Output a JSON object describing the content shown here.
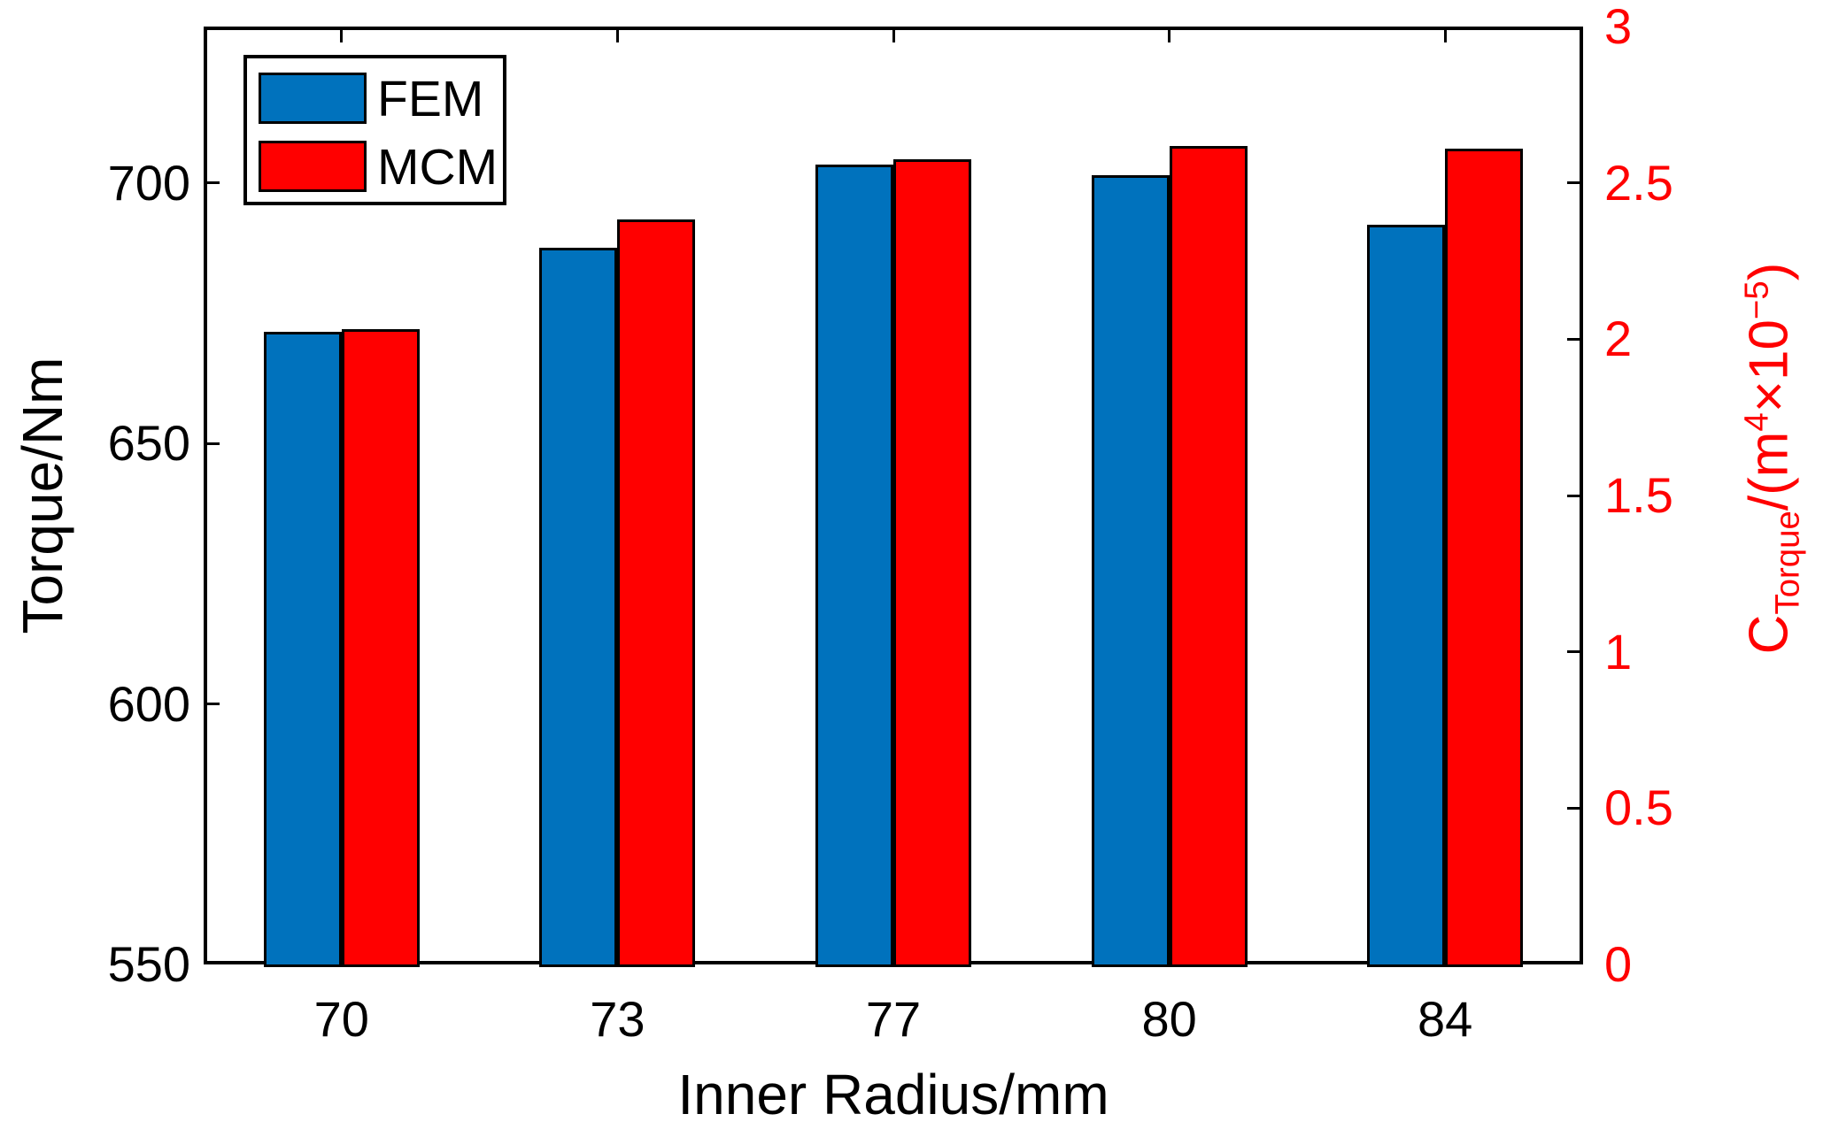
{
  "chart_data": {
    "type": "bar",
    "title": "",
    "xlabel": "Inner Radius/mm",
    "ylabel_left": "Torque/Nm",
    "ylabel_right": "C_Torque/(m^4 x 10^-5)",
    "categories": [
      "70",
      "73",
      "77",
      "80",
      "84"
    ],
    "series": [
      {
        "name": "FEM",
        "color": "#0072BD",
        "torque_Nm": [
          671.5,
          687.5,
          703.5,
          701.5,
          692
        ],
        "c_torque_1e-5_m4": [
          2.02,
          2.29,
          2.56,
          2.53,
          2.37
        ]
      },
      {
        "name": "MCM",
        "color": "#FF0000",
        "torque_Nm": [
          672,
          693,
          704.5,
          707,
          706.5
        ],
        "c_torque_1e-5_m4": [
          2.03,
          2.38,
          2.58,
          2.62,
          2.61
        ]
      }
    ],
    "left_axis": {
      "min": 550,
      "max": 730,
      "ticks": [
        "550",
        "600",
        "650",
        "700"
      ],
      "tick_values": [
        550,
        600,
        650,
        700
      ],
      "color": "#000000"
    },
    "right_axis": {
      "min": 0,
      "max": 3,
      "ticks": [
        "0",
        "0.5",
        "1",
        "1.5",
        "2",
        "2.5",
        "3"
      ],
      "tick_values": [
        0,
        0.5,
        1,
        1.5,
        2,
        2.5,
        3
      ],
      "color": "#FF0000"
    },
    "legend": {
      "position": "top-left",
      "entries": [
        "FEM",
        "MCM"
      ]
    },
    "grid": false,
    "plot_border": "box"
  },
  "labels": {
    "xlabel": "Inner Radius/mm",
    "ylabel_left": "Torque/Nm"
  },
  "right_axis_label_parts": [
    {
      "t": "C"
    },
    {
      "sub": "Torque"
    },
    {
      "t": "/(m"
    },
    {
      "sup": "4"
    },
    {
      "t": "×10"
    },
    {
      "sup": "−5"
    },
    {
      "t": ")"
    }
  ],
  "colors": {
    "fem_bar": "#0072BD",
    "mcm_bar": "#FF0000",
    "right_axis_text": "#FF0000",
    "axis_lines": "#000000",
    "background": "#FFFFFF"
  }
}
